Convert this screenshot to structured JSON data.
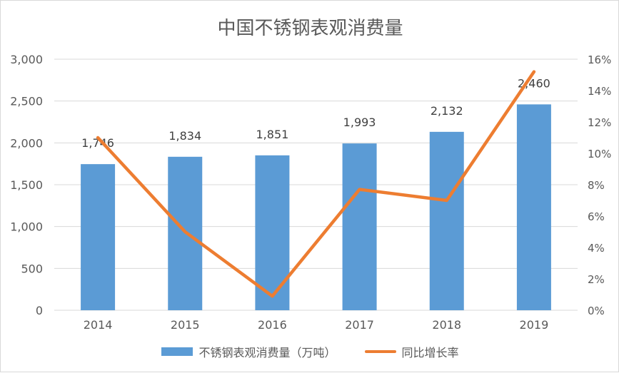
{
  "colors": {
    "bar": "#5B9BD5",
    "line": "#ED7D31",
    "grid": "#d9d9d9",
    "text": "#595959",
    "label": "#404040"
  },
  "chart_data": {
    "type": "bar",
    "title": "中国不锈钢表观消费量",
    "categories": [
      "2014",
      "2015",
      "2016",
      "2017",
      "2018",
      "2019"
    ],
    "ylim": [
      0,
      3000
    ],
    "yticks": [
      "0",
      "500",
      "1,000",
      "1,500",
      "2,000",
      "2,500",
      "3,000"
    ],
    "y2lim": [
      0,
      16
    ],
    "y2ticks": [
      "0%",
      "2%",
      "4%",
      "6%",
      "8%",
      "10%",
      "12%",
      "14%",
      "16%"
    ],
    "grid": true,
    "legend_position": "bottom",
    "series": [
      {
        "name": "不锈钢表观消费量（万吨）",
        "type": "bar",
        "axis": "left",
        "values": [
          1746,
          1834,
          1851,
          1993,
          2132,
          2460
        ],
        "labels": [
          "1,746",
          "1,834",
          "1,851",
          "1,993",
          "2,132",
          "2,460"
        ]
      },
      {
        "name": "同比增长率",
        "type": "line",
        "axis": "right",
        "values": [
          11.0,
          5.0,
          0.9,
          7.7,
          7.0,
          15.2
        ]
      }
    ]
  }
}
